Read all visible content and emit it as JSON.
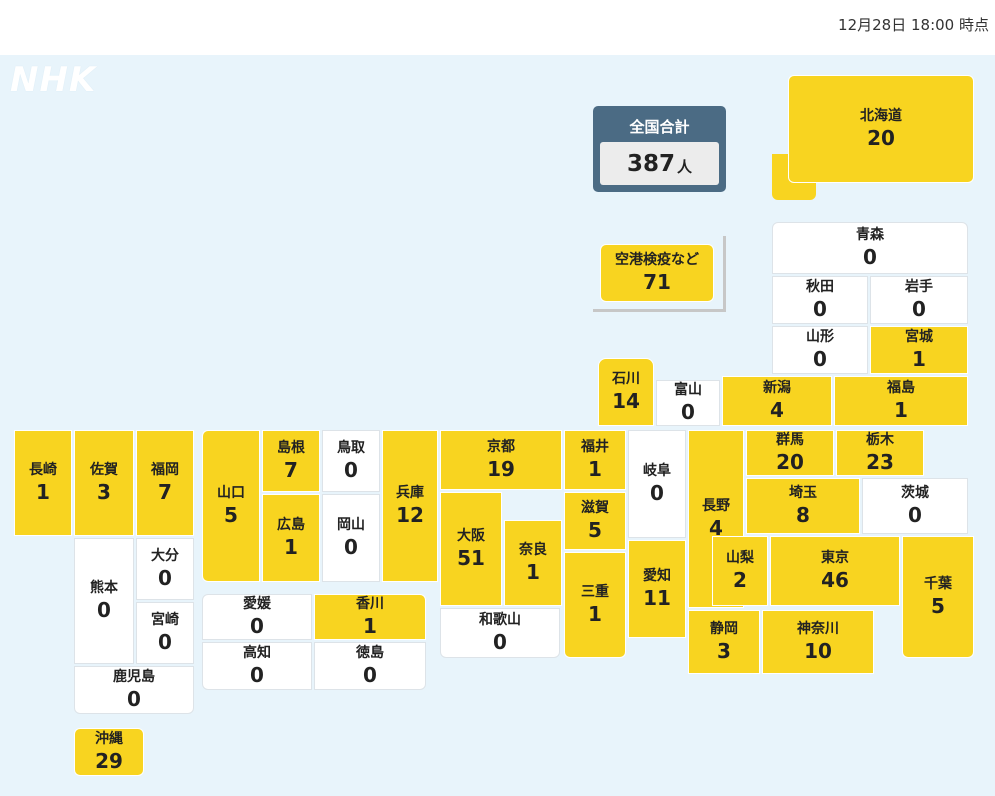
{
  "header": {
    "timestamp": "12月28日 18:00 時点"
  },
  "logo": {
    "text": "NHK"
  },
  "total": {
    "label": "全国合計",
    "value": "387",
    "unit": "人"
  },
  "colors": {
    "has_cases": "#f8d420",
    "zero_cases": "#ffffff",
    "map_background": "#e8f4fb",
    "total_box": "#4b6b84"
  },
  "prefectures": [
    {
      "id": "hokkaido",
      "name": "北海道",
      "value": "20"
    },
    {
      "id": "airport",
      "name": "空港検疫など",
      "value": "71"
    },
    {
      "id": "aomori",
      "name": "青森",
      "value": "0"
    },
    {
      "id": "akita",
      "name": "秋田",
      "value": "0"
    },
    {
      "id": "iwate",
      "name": "岩手",
      "value": "0"
    },
    {
      "id": "yamagata",
      "name": "山形",
      "value": "0"
    },
    {
      "id": "miyagi",
      "name": "宮城",
      "value": "1"
    },
    {
      "id": "ishikawa",
      "name": "石川",
      "value": "14"
    },
    {
      "id": "toyama",
      "name": "富山",
      "value": "0"
    },
    {
      "id": "niigata",
      "name": "新潟",
      "value": "4"
    },
    {
      "id": "fukushima",
      "name": "福島",
      "value": "1"
    },
    {
      "id": "nagasaki",
      "name": "長崎",
      "value": "1"
    },
    {
      "id": "saga",
      "name": "佐賀",
      "value": "3"
    },
    {
      "id": "fukuoka",
      "name": "福岡",
      "value": "7"
    },
    {
      "id": "yamaguchi",
      "name": "山口",
      "value": "5"
    },
    {
      "id": "shimane",
      "name": "島根",
      "value": "7"
    },
    {
      "id": "tottori",
      "name": "鳥取",
      "value": "0"
    },
    {
      "id": "hyogo",
      "name": "兵庫",
      "value": "12"
    },
    {
      "id": "kyoto",
      "name": "京都",
      "value": "19"
    },
    {
      "id": "fukui",
      "name": "福井",
      "value": "1"
    },
    {
      "id": "gifu",
      "name": "岐阜",
      "value": "0"
    },
    {
      "id": "nagano",
      "name": "長野",
      "value": "4"
    },
    {
      "id": "gunma",
      "name": "群馬",
      "value": "20"
    },
    {
      "id": "tochigi",
      "name": "栃木",
      "value": "23"
    },
    {
      "id": "hiroshima",
      "name": "広島",
      "value": "1"
    },
    {
      "id": "okayama",
      "name": "岡山",
      "value": "0"
    },
    {
      "id": "osaka",
      "name": "大阪",
      "value": "51"
    },
    {
      "id": "nara",
      "name": "奈良",
      "value": "1"
    },
    {
      "id": "shiga",
      "name": "滋賀",
      "value": "5"
    },
    {
      "id": "saitama",
      "name": "埼玉",
      "value": "8"
    },
    {
      "id": "ibaraki",
      "name": "茨城",
      "value": "0"
    },
    {
      "id": "kumamoto",
      "name": "熊本",
      "value": "0"
    },
    {
      "id": "oita",
      "name": "大分",
      "value": "0"
    },
    {
      "id": "miyazaki",
      "name": "宮崎",
      "value": "0"
    },
    {
      "id": "mie",
      "name": "三重",
      "value": "1"
    },
    {
      "id": "aichi",
      "name": "愛知",
      "value": "11"
    },
    {
      "id": "yamanashi",
      "name": "山梨",
      "value": "2"
    },
    {
      "id": "tokyo",
      "name": "東京",
      "value": "46"
    },
    {
      "id": "chiba",
      "name": "千葉",
      "value": "5"
    },
    {
      "id": "ehime",
      "name": "愛媛",
      "value": "0"
    },
    {
      "id": "kagawa",
      "name": "香川",
      "value": "1"
    },
    {
      "id": "wakayama",
      "name": "和歌山",
      "value": "0"
    },
    {
      "id": "kochi",
      "name": "高知",
      "value": "0"
    },
    {
      "id": "tokushima",
      "name": "徳島",
      "value": "0"
    },
    {
      "id": "shizuoka",
      "name": "静岡",
      "value": "3"
    },
    {
      "id": "kanagawa",
      "name": "神奈川",
      "value": "10"
    },
    {
      "id": "kagoshima",
      "name": "鹿児島",
      "value": "0"
    },
    {
      "id": "okinawa",
      "name": "沖縄",
      "value": "29"
    }
  ]
}
